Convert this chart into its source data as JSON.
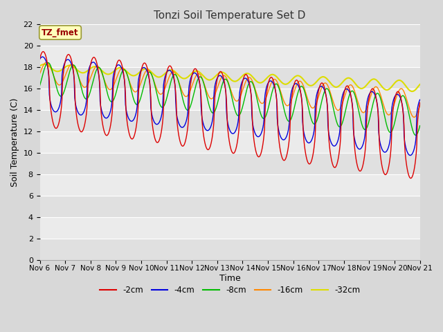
{
  "title": "Tonzi Soil Temperature Set D",
  "xlabel": "Time",
  "ylabel": "Soil Temperature (C)",
  "ylim": [
    0,
    22
  ],
  "yticks": [
    0,
    2,
    4,
    6,
    8,
    10,
    12,
    14,
    16,
    18,
    20,
    22
  ],
  "x_labels": [
    "Nov 6",
    "Nov 7",
    "Nov 8",
    "Nov 9",
    "Nov 10",
    "Nov 11",
    "Nov 12",
    "Nov 13",
    "Nov 14",
    "Nov 15",
    "Nov 16",
    "Nov 17",
    "Nov 18",
    "Nov 19",
    "Nov 20",
    "Nov 21"
  ],
  "series": {
    "-2cm": {
      "color": "#dd0000",
      "lw": 1.0
    },
    "-4cm": {
      "color": "#0000dd",
      "lw": 1.0
    },
    "-8cm": {
      "color": "#00bb00",
      "lw": 1.0
    },
    "-16cm": {
      "color": "#ff8800",
      "lw": 1.0
    },
    "-32cm": {
      "color": "#dddd00",
      "lw": 1.5
    }
  },
  "legend_label": "TZ_fmet",
  "bg_color": "#d8d8d8",
  "plot_bg": "#e8e8e8",
  "grid_color": "#ffffff",
  "n_days": 15,
  "pts_per_day": 48
}
